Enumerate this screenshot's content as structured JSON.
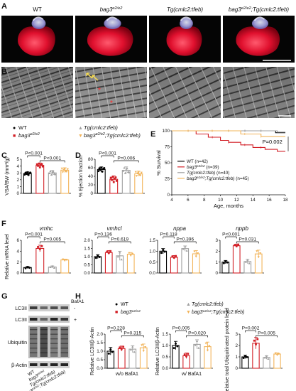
{
  "panel_letters": [
    "A",
    "B",
    "C",
    "D",
    "E",
    "F",
    "G",
    "H"
  ],
  "panelA": {
    "headers": [
      {
        "base": "WT",
        "sup": ""
      },
      {
        "base": "bag3",
        "sup": "e2/e2"
      },
      {
        "base": "Tg(cmlc2:tfeb)",
        "sup": ""
      },
      {
        "base": "bag3",
        "sup": "e2/e2",
        "suffix": ";Tg(cmlc2:tfeb)"
      }
    ]
  },
  "legend_top": {
    "items": [
      {
        "marker": "●",
        "base": "WT",
        "sup": "",
        "color": "#000000"
      },
      {
        "marker": "■",
        "base": "bag3",
        "sup": "e2/e2",
        "color": "#d21f26"
      },
      {
        "marker": "▲",
        "base": "Tg(cmlc2:tfeb)",
        "sup": "",
        "color": "#a0a0a0"
      },
      {
        "marker": "▼",
        "base": "bag3",
        "sup": "e2/e2",
        "suffix": ";Tg(cmlc2:tfeb)",
        "color": "#f2b45a"
      }
    ]
  },
  "colors": {
    "wt": "#000000",
    "bag3": "#d21f26",
    "tg": "#a0a0a0",
    "bag3tg": "#f2b45a"
  },
  "chart_data": [
    {
      "panel": "C",
      "type": "bar",
      "categories": [
        "WT",
        "bag3e2/e2",
        "Tg(cmlc2:tfeb)",
        "bag3e2/e2;Tg(cmlc2:tfeb)"
      ],
      "values": [
        2.9,
        4.1,
        3.0,
        3.4
      ],
      "errors": [
        0.25,
        0.35,
        0.35,
        0.35
      ],
      "ylabel": "VSA/BW (mm²/g)",
      "ylim": [
        0,
        5
      ],
      "yticks": [
        "0",
        "1",
        "2",
        "3",
        "4",
        "5"
      ],
      "significance": [
        {
          "from": 0,
          "to": 1,
          "label": "P<0.001"
        },
        {
          "from": 1,
          "to": 3,
          "label": "P<0.001"
        }
      ]
    },
    {
      "panel": "D",
      "type": "bar",
      "categories": [
        "WT",
        "bag3e2/e2",
        "Tg(cmlc2:tfeb)",
        "bag3e2/e2;Tg(cmlc2:tfeb)"
      ],
      "values": [
        56,
        33,
        54,
        46
      ],
      "errors": [
        6,
        8,
        8,
        6
      ],
      "ylabel": "% Ejection fraction",
      "ylim": [
        0,
        80
      ],
      "yticks": [
        "0",
        "20",
        "40",
        "60",
        "80"
      ],
      "significance": [
        {
          "from": 0,
          "to": 1,
          "label": "P<0.001"
        },
        {
          "from": 1,
          "to": 3,
          "label": "P=0.006"
        }
      ]
    },
    {
      "panel": "E",
      "type": "line",
      "ylabel": "% Survival",
      "xlabel": "Age, months",
      "xlim": [
        4,
        18
      ],
      "xticks": [
        "4",
        "6",
        "8",
        "10",
        "12",
        "14",
        "16",
        "18"
      ],
      "ylim": [
        0,
        100
      ],
      "yticks": [
        "0",
        "25",
        "50",
        "75",
        "100"
      ],
      "annotation": "P=0.002",
      "series": [
        {
          "label_base": "WT",
          "label_sup": "",
          "n": "(n=42)",
          "x": [
            4,
            16.8,
            16.8,
            18
          ],
          "y": [
            100,
            100,
            97,
            97
          ]
        },
        {
          "label_base": "bag3",
          "label_sup": "e2/e2",
          "n": "(n=39)",
          "x": [
            4,
            7,
            7,
            8.5,
            8.5,
            10,
            10,
            11,
            11,
            12.5,
            12.5,
            14,
            14,
            15.5,
            15.5,
            17,
            17,
            18
          ],
          "y": [
            100,
            100,
            95,
            95,
            90,
            90,
            85,
            85,
            82,
            82,
            78,
            78,
            74,
            74,
            71,
            71,
            68,
            68
          ]
        },
        {
          "label_base": "Tg(cmlc2:tfeb)",
          "label_sup": "",
          "n": "(n=40)",
          "x": [
            4,
            17,
            17,
            18
          ],
          "y": [
            100,
            100,
            98,
            98
          ]
        },
        {
          "label_base": "bag3",
          "label_sup": "e2/e2",
          "label_suffix": ";Tg(cmlc2:tfeb)",
          "n": "(n=45)",
          "x": [
            4,
            12.5,
            12.5,
            15,
            15,
            18
          ],
          "y": [
            100,
            100,
            95,
            95,
            91,
            91
          ]
        }
      ]
    },
    {
      "panel": "F1",
      "type": "bar",
      "title": "vmhc",
      "ylabel": "Relative mRNA level",
      "values": [
        1.0,
        4.5,
        1.1,
        2.4
      ],
      "errors": [
        0.2,
        0.6,
        0.2,
        0.15
      ],
      "ylim": [
        0,
        6
      ],
      "yticks": [
        "0",
        "2",
        "4",
        "6"
      ],
      "significance": [
        {
          "from": 0,
          "to": 1,
          "label": "P<0.001"
        },
        {
          "from": 1,
          "to": 3,
          "label": "P=0.005"
        }
      ]
    },
    {
      "panel": "F2",
      "type": "bar",
      "title": "vmhcl",
      "values": [
        1.0,
        1.25,
        1.05,
        1.15
      ],
      "errors": [
        0.12,
        0.12,
        0.28,
        0.1
      ],
      "ylim": [
        0,
        2.0
      ],
      "yticks": [
        "0.0",
        "0.5",
        "1.0",
        "1.5",
        "2.0"
      ],
      "significance": [
        {
          "from": 0,
          "to": 1,
          "label": "P=0.136"
        },
        {
          "from": 1,
          "to": 3,
          "label": "P=0.619"
        }
      ]
    },
    {
      "panel": "F3",
      "type": "bar",
      "title": "nppa",
      "values": [
        1.0,
        0.72,
        1.12,
        0.88
      ],
      "errors": [
        0.12,
        0.08,
        0.12,
        0.15
      ],
      "ylim": [
        0,
        1.5
      ],
      "yticks": [
        "0.0",
        "0.5",
        "1.0",
        "1.5"
      ],
      "significance": [
        {
          "from": 0,
          "to": 1,
          "label": "P=0.118"
        },
        {
          "from": 1,
          "to": 3,
          "label": "P=0.396"
        }
      ]
    },
    {
      "panel": "F4",
      "type": "bar",
      "title": "nppb",
      "values": [
        1.0,
        2.5,
        1.05,
        1.75
      ],
      "errors": [
        0.15,
        0.15,
        0.2,
        0.35
      ],
      "ylim": [
        0,
        3
      ],
      "yticks": [
        "0",
        "1",
        "2",
        "3"
      ],
      "significance": [
        {
          "from": 0,
          "to": 1,
          "label": "P<0.001"
        },
        {
          "from": 1,
          "to": 3,
          "label": "P=0.031"
        }
      ]
    },
    {
      "panel": "H1",
      "type": "bar",
      "ylabel": "Relative LC3II/β-Actin",
      "xlabel": "w/o BafA1",
      "values": [
        1.0,
        1.15,
        1.12,
        1.2
      ],
      "errors": [
        0.22,
        0.15,
        0.2,
        0.22
      ],
      "ylim": [
        0,
        2.0
      ],
      "yticks": [
        "0.0",
        "0.5",
        "1.0",
        "1.5",
        "2.0"
      ],
      "significance": [
        {
          "from": 0,
          "to": 1,
          "label": "P=0.228"
        },
        {
          "from": 1,
          "to": 3,
          "label": "P=0.315"
        }
      ]
    },
    {
      "panel": "H2",
      "type": "bar",
      "ylabel": "Relative LC3II/β-Actin",
      "xlabel": "w/ BafA1",
      "values": [
        1.0,
        0.55,
        1.05,
        0.95
      ],
      "errors": [
        0.18,
        0.12,
        0.2,
        0.2
      ],
      "ylim": [
        0,
        1.5
      ],
      "yticks": [
        "0.0",
        "0.5",
        "1.0",
        "1.5"
      ],
      "significance": [
        {
          "from": 0,
          "to": 1,
          "label": "P=0.005"
        },
        {
          "from": 1,
          "to": 3,
          "label": "P=0.020"
        }
      ]
    },
    {
      "panel": "H3",
      "type": "bar",
      "ylabel": "Relative total Ubiquitinated protein level",
      "values": [
        1.0,
        2.2,
        0.95,
        1.25
      ],
      "errors": [
        0.15,
        0.5,
        0.15,
        0.1
      ],
      "ylim": [
        0,
        3
      ],
      "yticks": [
        "0",
        "1",
        "2",
        "3"
      ],
      "significance": [
        {
          "from": 0,
          "to": 1,
          "label": "P=0.002"
        },
        {
          "from": 1,
          "to": 3,
          "label": "P=0.005"
        }
      ]
    }
  ],
  "panelG": {
    "bafa1_label": "BafA1",
    "minus": "-",
    "plus": "+",
    "band_labels": [
      "LC3II",
      "LC3II",
      "Ubiquitin",
      "β-Actin"
    ],
    "lane_labels": [
      {
        "base": "WT",
        "sup": ""
      },
      {
        "base": "bag3",
        "sup": "e2/e2"
      },
      {
        "base": "Tg(cmlc2:tfeb)",
        "sup": ""
      },
      {
        "base": "bag3",
        "sup": "e2/e2",
        "suffix": ";Tg(cmlc2:tfeb)"
      }
    ]
  },
  "legend_H": {
    "items": [
      {
        "marker": "●",
        "base": "WT",
        "sup": "",
        "color": "#000000"
      },
      {
        "marker": "■",
        "base": "bag3",
        "sup": "e2/e2",
        "color": "#d21f26"
      },
      {
        "marker": "▲",
        "base": "Tg(cmlc2:tfeb)",
        "sup": "",
        "color": "#a0a0a0"
      },
      {
        "marker": "▼",
        "base": "bag3",
        "sup": "e2/e2",
        "suffix": ";Tg(cmlc2:tfeb)",
        "color": "#f2b45a"
      }
    ]
  }
}
